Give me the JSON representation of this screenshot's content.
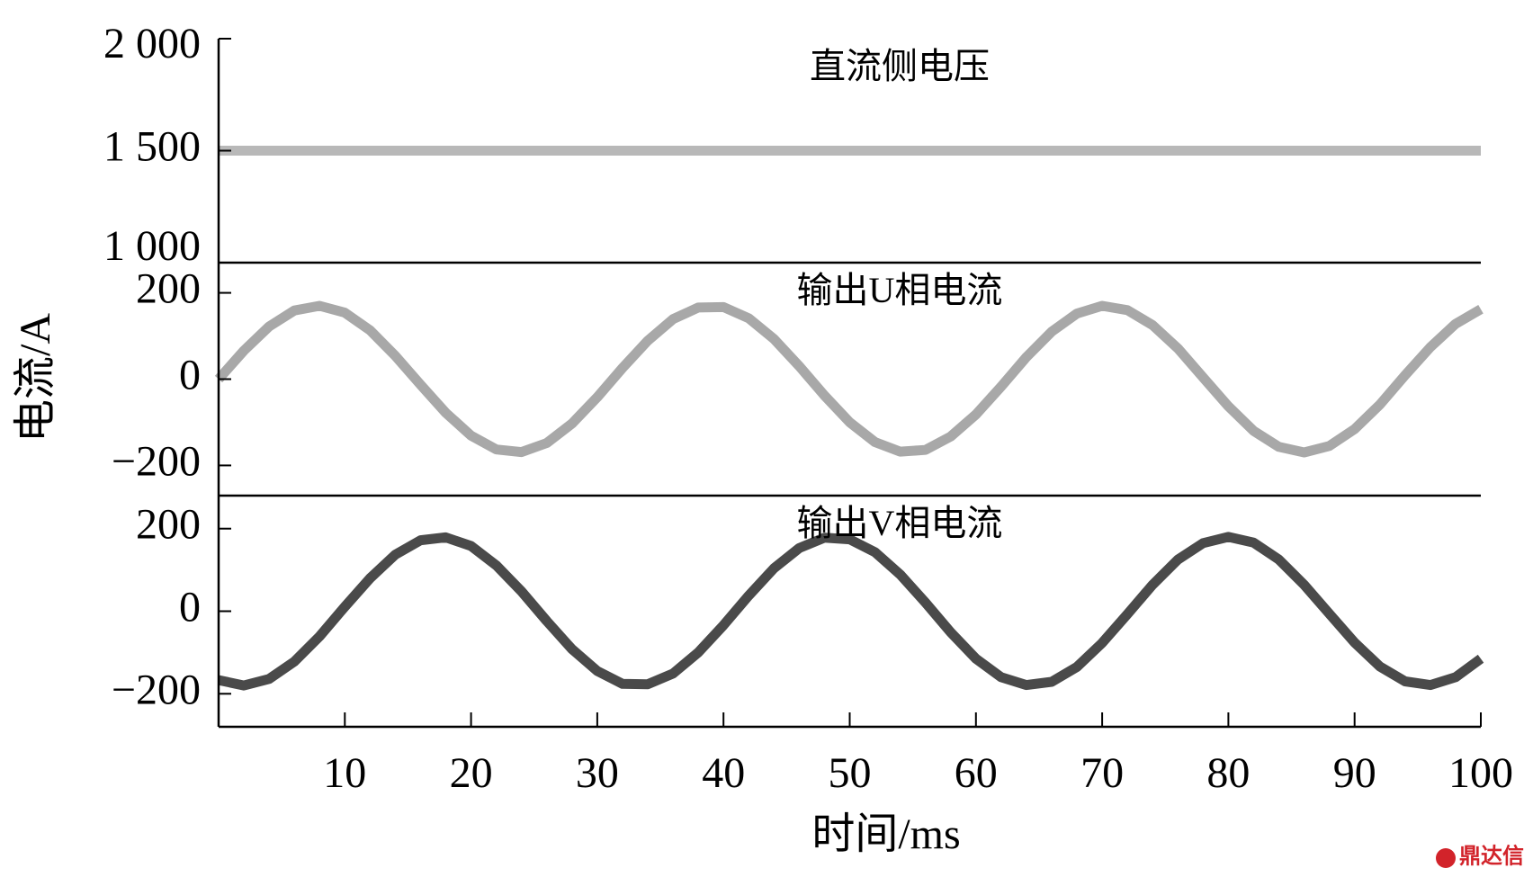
{
  "xlabel": "时间/ms",
  "ylabel": "电流/A",
  "watermark": "鼎达信",
  "chart_data": [
    {
      "type": "line",
      "title": "直流侧电压",
      "x": [
        0,
        100
      ],
      "series": [
        {
          "color": "#b8b8b8",
          "values": [
            1500,
            1500
          ]
        }
      ],
      "xlim": [
        0,
        100
      ],
      "ylim": [
        1000,
        2000
      ],
      "yticks": [
        {
          "value": 1000,
          "label": "1 000"
        },
        {
          "value": 1500,
          "label": "1 500"
        },
        {
          "value": 2000,
          "label": "2 000"
        }
      ]
    },
    {
      "type": "line",
      "title": "输出U相电流",
      "x": [
        0,
        2,
        4,
        6,
        8,
        10,
        12,
        14,
        16,
        18,
        20,
        22,
        24,
        26,
        28,
        30,
        32,
        34,
        36,
        38,
        40,
        42,
        44,
        46,
        48,
        50,
        52,
        54,
        56,
        58,
        60,
        62,
        64,
        66,
        68,
        70,
        72,
        74,
        76,
        78,
        80,
        82,
        84,
        86,
        88,
        90,
        92,
        94,
        96,
        98,
        100
      ],
      "series": [
        {
          "color": "#a8a8a8",
          "values": [
            0,
            66,
            122,
            159,
            170,
            154,
            113,
            54,
            -13,
            -78,
            -131,
            -163,
            -169,
            -148,
            -103,
            -42,
            26,
            89,
            139,
            166,
            167,
            141,
            93,
            30,
            -38,
            -100,
            -146,
            -168,
            -164,
            -133,
            -82,
            -17,
            51,
            110,
            152,
            170,
            160,
            125,
            71,
            4,
            -63,
            -120,
            -157,
            -170,
            -155,
            -116,
            -59,
            9,
            74,
            128,
            162
          ]
        }
      ],
      "xlim": [
        0,
        100
      ],
      "ylim": [
        -270,
        270
      ],
      "yticks": [
        {
          "value": -200,
          "label": "−200"
        },
        0,
        200
      ]
    },
    {
      "type": "line",
      "title": "输出V相电流",
      "x": [
        0,
        2,
        4,
        6,
        8,
        10,
        12,
        14,
        16,
        18,
        20,
        22,
        24,
        26,
        28,
        30,
        32,
        34,
        36,
        38,
        40,
        42,
        44,
        46,
        48,
        50,
        52,
        54,
        56,
        58,
        60,
        62,
        64,
        66,
        68,
        70,
        72,
        74,
        76,
        78,
        80,
        82,
        84,
        86,
        88,
        90,
        92,
        94,
        96,
        98,
        100
      ],
      "series": [
        {
          "color": "#4a4a4a",
          "values": [
            -167,
            -180,
            -164,
            -122,
            -61,
            11,
            80,
            137,
            172,
            179,
            158,
            111,
            48,
            -24,
            -92,
            -145,
            -176,
            -177,
            -151,
            -100,
            -34,
            38,
            104,
            153,
            178,
            174,
            143,
            89,
            21,
            -51,
            -115,
            -160,
            -179,
            -171,
            -135,
            -77,
            -7,
            64,
            125,
            165,
            180,
            166,
            125,
            64,
            -6,
            -76,
            -134,
            -170,
            -179,
            -160,
            -115
          ]
        }
      ],
      "xlim": [
        0,
        100
      ],
      "ylim": [
        -280,
        280
      ],
      "yticks": [
        {
          "value": -200,
          "label": "−200"
        },
        0,
        200
      ],
      "xticks": [
        10,
        20,
        30,
        40,
        50,
        60,
        70,
        80,
        90,
        100
      ]
    }
  ]
}
